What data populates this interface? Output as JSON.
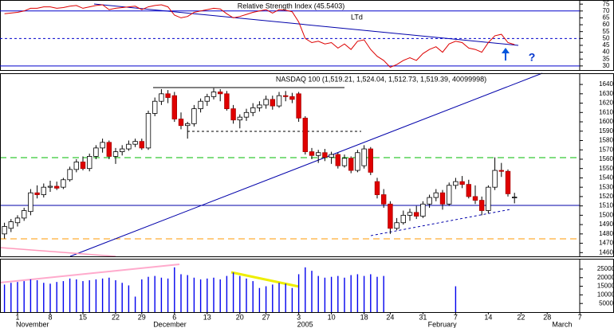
{
  "chart_data": [
    {
      "type": "line",
      "title": "Relative Strength Index (45.5403)",
      "color": "#dd0000",
      "annotations": [
        "LTd",
        "?"
      ],
      "ylim": [
        27,
        78
      ],
      "yticks": [
        75,
        70,
        65,
        60,
        55,
        50,
        45,
        40,
        35,
        30
      ],
      "levels": [
        {
          "value": 70,
          "style": "solid"
        },
        {
          "value": 50,
          "style": "dashed"
        },
        {
          "value": 30,
          "style": "solid"
        }
      ],
      "level_color": "#0000cc",
      "values": [
        68,
        68.5,
        69,
        70,
        72,
        72,
        73,
        73,
        72,
        72.5,
        73.5,
        74,
        72,
        73,
        74,
        74.5,
        71,
        72,
        72.5,
        73,
        73.5,
        71,
        73,
        74,
        74.5,
        73,
        67,
        65,
        66,
        69,
        70,
        71,
        72,
        71.5,
        68,
        65,
        66,
        67.5,
        69,
        70,
        71,
        68.5,
        71,
        70.5,
        69.5,
        62,
        50,
        47,
        48,
        46,
        47,
        43,
        46,
        42,
        48,
        49,
        42,
        37,
        34,
        29,
        31,
        34,
        36,
        34,
        39,
        42,
        44,
        40,
        46,
        48,
        47,
        43,
        42,
        40,
        47,
        52,
        53,
        47,
        45.54,
        null,
        null,
        null,
        null,
        null,
        null,
        null,
        null,
        null,
        null
      ]
    },
    {
      "type": "candlestick",
      "title": "NASDAQ 100 (1,519.21, 1,524.04, 1,512.73, 1,519.39, 40099998)",
      "up_color": "#ffffff",
      "down_color": "#e00000",
      "ylim": [
        1456,
        1652
      ],
      "yticks": [
        1640,
        1630,
        1620,
        1610,
        1600,
        1590,
        1580,
        1570,
        1560,
        1550,
        1540,
        1530,
        1520,
        1510,
        1500,
        1490,
        1480,
        1470,
        1460
      ],
      "open": [
        1480,
        1486,
        1492,
        1497,
        1504,
        1524,
        1522,
        1530,
        1531,
        1530,
        1538,
        1549,
        1557,
        1550,
        1563,
        1572,
        1578,
        1563,
        1568,
        1571,
        1576,
        1579,
        1572,
        1609,
        1622,
        1630,
        1628,
        1603,
        1596,
        1598,
        1614,
        1622,
        1627,
        1632,
        1630,
        1614,
        1602,
        1605,
        1610,
        1615,
        1618,
        1624,
        1617,
        1628,
        1627,
        1630,
        1604,
        1568,
        1564,
        1567,
        1562,
        1565,
        1553,
        1561,
        1548,
        1553,
        1571,
        1536,
        1522,
        1512,
        1486,
        1492,
        1500,
        1503,
        1499,
        1512,
        1519,
        1524,
        1512,
        1532,
        1536,
        1533,
        1520,
        1516,
        1505,
        1530,
        1548,
        1547,
        1519.21,
        null,
        null,
        null,
        null,
        null,
        null,
        null,
        null,
        null,
        null
      ],
      "high": [
        1492,
        1496,
        1500,
        1508,
        1528,
        1532,
        1534,
        1537,
        1536,
        1540,
        1552,
        1560,
        1563,
        1566,
        1575,
        1582,
        1580,
        1572,
        1575,
        1580,
        1582,
        1582,
        1612,
        1626,
        1635,
        1634,
        1632,
        1610,
        1600,
        1618,
        1625,
        1630,
        1636,
        1635,
        1633,
        1618,
        1608,
        1614,
        1620,
        1622,
        1628,
        1628,
        1632,
        1633,
        1631,
        1632,
        1606,
        1572,
        1570,
        1571,
        1568,
        1567,
        1565,
        1563,
        1570,
        1575,
        1573,
        1540,
        1528,
        1515,
        1497,
        1505,
        1507,
        1510,
        1515,
        1522,
        1528,
        1527,
        1535,
        1540,
        1542,
        1538,
        1532,
        1520,
        1532,
        1562,
        1556,
        1549,
        1524.04,
        null,
        null,
        null,
        null,
        null,
        null,
        null,
        null,
        null,
        null
      ],
      "low": [
        1475,
        1482,
        1488,
        1494,
        1500,
        1518,
        1519,
        1525,
        1527,
        1528,
        1536,
        1546,
        1548,
        1547,
        1560,
        1567,
        1560,
        1555,
        1564,
        1569,
        1573,
        1570,
        1570,
        1606,
        1618,
        1620,
        1600,
        1592,
        1582,
        1595,
        1610,
        1617,
        1624,
        1622,
        1612,
        1598,
        1593,
        1601,
        1606,
        1611,
        1614,
        1613,
        1615,
        1622,
        1620,
        1600,
        1565,
        1560,
        1556,
        1558,
        1555,
        1550,
        1551,
        1545,
        1546,
        1550,
        1543,
        1518,
        1508,
        1480,
        1484,
        1490,
        1494,
        1496,
        1497,
        1508,
        1515,
        1506,
        1510,
        1528,
        1529,
        1518,
        1512,
        1500,
        1502,
        1527,
        1541,
        1520,
        1512.73,
        null,
        null,
        null,
        null,
        null,
        null,
        null,
        null,
        null,
        null
      ],
      "close": [
        1488,
        1493,
        1497,
        1505,
        1524,
        1522,
        1530,
        1531,
        1529,
        1538,
        1549,
        1557,
        1550,
        1563,
        1572,
        1578,
        1563,
        1568,
        1571,
        1576,
        1579,
        1572,
        1609,
        1622,
        1630,
        1626,
        1603,
        1596,
        1598,
        1614,
        1622,
        1627,
        1632,
        1630,
        1614,
        1602,
        1605,
        1610,
        1615,
        1618,
        1624,
        1617,
        1628,
        1627,
        1624,
        1604,
        1568,
        1564,
        1567,
        1562,
        1565,
        1553,
        1561,
        1548,
        1567,
        1571,
        1546,
        1522,
        1512,
        1486,
        1492,
        1500,
        1503,
        1499,
        1512,
        1519,
        1524,
        1512,
        1532,
        1536,
        1533,
        1520,
        1516,
        1505,
        1530,
        1548,
        1547,
        1523,
        1519.39,
        null,
        null,
        null,
        null,
        null,
        null,
        null,
        null,
        null,
        null
      ]
    },
    {
      "type": "bar",
      "color": "#0000ee",
      "ylim": [
        0,
        31000
      ],
      "yticks": [
        25000,
        20000,
        15000,
        10000,
        5000
      ],
      "categories": [
        null,
        null,
        "1",
        null,
        null,
        null,
        null,
        "8",
        null,
        null,
        null,
        null,
        "15",
        null,
        null,
        null,
        null,
        "22",
        null,
        null,
        null,
        "29",
        null,
        null,
        null,
        null,
        "6",
        null,
        null,
        null,
        null,
        "13",
        null,
        null,
        null,
        null,
        "20",
        null,
        null,
        null,
        "27",
        null,
        null,
        null,
        null,
        "3",
        null,
        null,
        null,
        null,
        "10",
        null,
        null,
        null,
        null,
        "18",
        null,
        null,
        null,
        "24",
        null,
        null,
        null,
        null,
        "31",
        null,
        null,
        null,
        null,
        "7",
        null,
        null,
        null,
        null,
        "14",
        null,
        null,
        null,
        null,
        "22",
        null,
        null,
        null,
        "28",
        null,
        null,
        null,
        null,
        "7"
      ],
      "months": [
        null,
        null,
        "November",
        null,
        null,
        null,
        null,
        null,
        null,
        null,
        null,
        null,
        null,
        null,
        null,
        null,
        null,
        null,
        null,
        null,
        null,
        null,
        null,
        "December",
        null,
        null,
        null,
        null,
        null,
        null,
        null,
        null,
        null,
        null,
        null,
        null,
        null,
        null,
        null,
        null,
        null,
        null,
        null,
        null,
        null,
        "2005",
        null,
        null,
        null,
        null,
        null,
        null,
        null,
        null,
        null,
        null,
        null,
        null,
        null,
        null,
        null,
        null,
        null,
        null,
        null,
        "February",
        null,
        null,
        null,
        null,
        null,
        null,
        null,
        null,
        null,
        null,
        null,
        null,
        null,
        null,
        null,
        null,
        null,
        null,
        "March",
        null,
        null,
        null,
        null
      ],
      "values": [
        16000,
        17000,
        17500,
        18000,
        19000,
        18500,
        17000,
        16500,
        17500,
        18000,
        19500,
        19000,
        18000,
        18500,
        19000,
        19500,
        20000,
        18500,
        17000,
        15500,
        9000,
        19000,
        20500,
        21000,
        20000,
        19500,
        26000,
        22000,
        21500,
        20000,
        19000,
        19500,
        20000,
        19000,
        21000,
        23000,
        21000,
        19500,
        18000,
        14000,
        15000,
        16000,
        17000,
        16500,
        14000,
        22000,
        26000,
        24000,
        21000,
        20000,
        20500,
        21000,
        20000,
        21500,
        22000,
        21000,
        22000,
        20500,
        21000,
        null,
        null,
        null,
        null,
        null,
        null,
        null,
        null,
        null,
        null,
        15000,
        null,
        null,
        null,
        null,
        null,
        null,
        null,
        null,
        null,
        null,
        null,
        null,
        null,
        null,
        null,
        null,
        null,
        null,
        null
      ]
    }
  ]
}
